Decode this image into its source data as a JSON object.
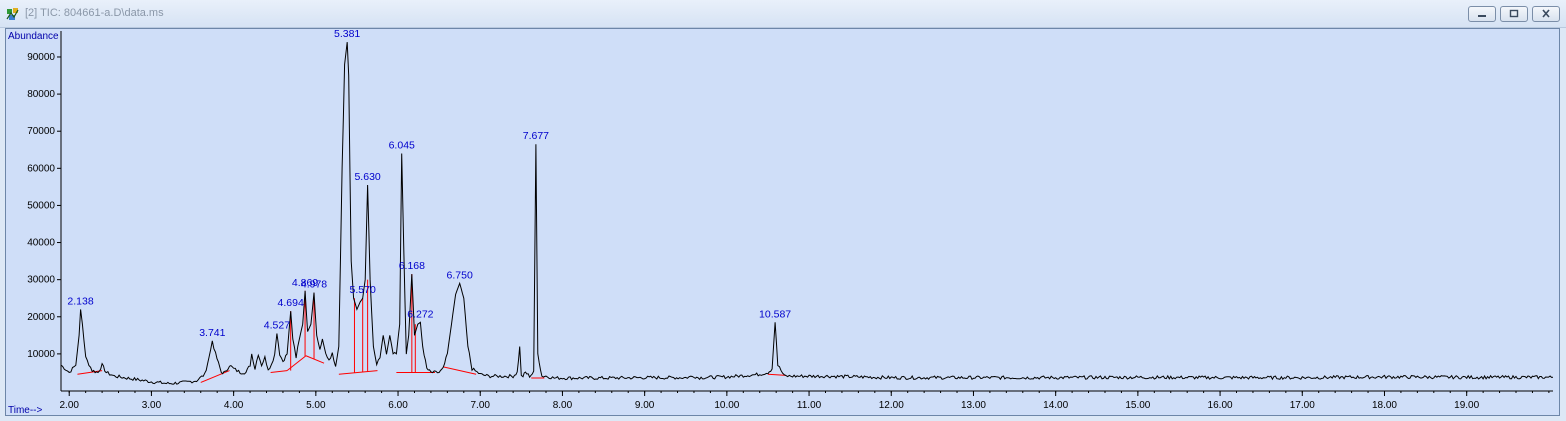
{
  "window": {
    "title": "[2] TIC: 804661-a.D\\data.ms",
    "icon": "app-icon",
    "controls": [
      "minimize-icon",
      "restore-icon",
      "close-icon"
    ]
  },
  "chart_data": {
    "type": "line",
    "title": "",
    "ylabel": "Abundance",
    "xlabel": "Time-->",
    "xlim": [
      1.9,
      20.05
    ],
    "ylim": [
      0,
      97000
    ],
    "x_ticks": [
      "2.00",
      "3.00",
      "4.00",
      "5.00",
      "6.00",
      "7.00",
      "8.00",
      "9.00",
      "10.00",
      "11.00",
      "12.00",
      "13.00",
      "14.00",
      "15.00",
      "16.00",
      "17.00",
      "18.00",
      "19.00"
    ],
    "y_ticks": [
      "10000",
      "20000",
      "30000",
      "40000",
      "50000",
      "60000",
      "70000",
      "80000",
      "90000"
    ],
    "series_color": "#000000",
    "baseline_color": "#ff0000",
    "label_color": "#0000cc",
    "series": [
      {
        "name": "TIC",
        "x": [
          1.9,
          2.0,
          2.08,
          2.12,
          2.138,
          2.16,
          2.2,
          2.28,
          2.35,
          2.4,
          2.45,
          2.55,
          2.7,
          2.85,
          3.0,
          3.2,
          3.4,
          3.55,
          3.65,
          3.7,
          3.741,
          3.78,
          3.85,
          3.9,
          3.95,
          4.0,
          4.08,
          4.15,
          4.2,
          4.22,
          4.26,
          4.3,
          4.34,
          4.38,
          4.42,
          4.46,
          4.5,
          4.527,
          4.56,
          4.6,
          4.65,
          4.694,
          4.72,
          4.76,
          4.8,
          4.84,
          4.869,
          4.9,
          4.94,
          4.978,
          5.01,
          5.05,
          5.08,
          5.12,
          5.16,
          5.2,
          5.24,
          5.28,
          5.32,
          5.35,
          5.381,
          5.4,
          5.43,
          5.46,
          5.5,
          5.54,
          5.57,
          5.6,
          5.63,
          5.66,
          5.7,
          5.74,
          5.78,
          5.82,
          5.86,
          5.9,
          5.94,
          5.98,
          6.02,
          6.045,
          6.07,
          6.1,
          6.13,
          6.168,
          6.2,
          6.24,
          6.272,
          6.3,
          6.35,
          6.4,
          6.5,
          6.55,
          6.6,
          6.65,
          6.7,
          6.75,
          6.8,
          6.85,
          6.9,
          7.0,
          7.1,
          7.2,
          7.3,
          7.4,
          7.45,
          7.48,
          7.5,
          7.52,
          7.55,
          7.6,
          7.65,
          7.677,
          7.7,
          7.75,
          7.8,
          7.9,
          8.0,
          8.5,
          9.0,
          9.5,
          9.6,
          9.65,
          10.0,
          10.4,
          10.5,
          10.55,
          10.587,
          10.62,
          10.7,
          10.8,
          11.2,
          12.0,
          13.0,
          14.0,
          15.0,
          16.0,
          17.0,
          18.0,
          19.0,
          19.8,
          20.05
        ],
        "y": [
          7000,
          5000,
          7000,
          15000,
          22000,
          18000,
          9000,
          5500,
          5000,
          7000,
          5000,
          4000,
          3500,
          3000,
          2500,
          2000,
          2300,
          2800,
          4500,
          9000,
          13500,
          10000,
          5000,
          5000,
          7000,
          6000,
          5000,
          5000,
          7000,
          10000,
          6000,
          10000,
          7000,
          9000,
          6000,
          7000,
          10000,
          15500,
          10000,
          8000,
          10000,
          21500,
          14000,
          9000,
          14000,
          18000,
          27000,
          16000,
          18000,
          26500,
          15000,
          11000,
          14000,
          10000,
          8500,
          10000,
          7000,
          12000,
          60000,
          88000,
          94000,
          85000,
          35000,
          25000,
          22000,
          24000,
          25000,
          30000,
          55500,
          30000,
          12000,
          7500,
          9000,
          15000,
          10000,
          15000,
          10000,
          10000,
          18000,
          64000,
          38000,
          10000,
          15000,
          31500,
          15000,
          18000,
          18500,
          12000,
          6000,
          5000,
          5000,
          6000,
          10000,
          18000,
          26000,
          29000,
          25000,
          12000,
          6000,
          4500,
          4000,
          4000,
          4000,
          4000,
          5000,
          12000,
          4000,
          4000,
          5000,
          4000,
          5000,
          66500,
          10000,
          4000,
          4000,
          3500,
          3500,
          3500,
          3600,
          3600,
          4000,
          3600,
          3800,
          4500,
          5000,
          6000,
          18500,
          7000,
          4000,
          4000,
          4000,
          3600,
          3600,
          3600,
          3700,
          3600,
          3600,
          3800,
          3700,
          3700,
          3700
        ]
      }
    ],
    "peaks": [
      {
        "label": "2.138",
        "x": 2.138,
        "y": 22000
      },
      {
        "label": "3.741",
        "x": 3.741,
        "y": 13500
      },
      {
        "label": "4.527",
        "x": 4.527,
        "y": 15500
      },
      {
        "label": "4.694",
        "x": 4.694,
        "y": 21500
      },
      {
        "label": "4.869",
        "x": 4.869,
        "y": 27000
      },
      {
        "label": "4.978",
        "x": 4.978,
        "y": 26500
      },
      {
        "label": "5.381",
        "x": 5.381,
        "y": 94000
      },
      {
        "label": "5.570",
        "x": 5.57,
        "y": 25000
      },
      {
        "label": "5.630",
        "x": 5.63,
        "y": 55500
      },
      {
        "label": "6.045",
        "x": 6.045,
        "y": 64000
      },
      {
        "label": "6.168",
        "x": 6.168,
        "y": 31500
      },
      {
        "label": "6.272",
        "x": 6.272,
        "y": 18500
      },
      {
        "label": "6.750",
        "x": 6.75,
        "y": 29000
      },
      {
        "label": "7.677",
        "x": 7.677,
        "y": 66500
      },
      {
        "label": "10.587",
        "x": 10.587,
        "y": 18500
      }
    ],
    "baselines": [
      {
        "x1": 2.1,
        "y1": 4500,
        "x2": 2.4,
        "y2": 5500
      },
      {
        "x1": 3.6,
        "y1": 2300,
        "x2": 3.95,
        "y2": 5500
      },
      {
        "x1": 4.45,
        "y1": 5000,
        "x2": 4.65,
        "y2": 5500
      },
      {
        "x1": 4.65,
        "y1": 5500,
        "x2": 4.88,
        "y2": 9500
      },
      {
        "x1": 4.88,
        "y1": 9500,
        "x2": 5.1,
        "y2": 7500
      },
      {
        "x1": 5.28,
        "y1": 4500,
        "x2": 5.75,
        "y2": 5500
      },
      {
        "x1": 5.98,
        "y1": 5000,
        "x2": 6.45,
        "y2": 5000
      },
      {
        "x1": 6.55,
        "y1": 6500,
        "x2": 6.95,
        "y2": 4500
      },
      {
        "x1": 7.62,
        "y1": 3500,
        "x2": 7.78,
        "y2": 3500
      },
      {
        "x1": 10.5,
        "y1": 4500,
        "x2": 10.72,
        "y2": 4200
      }
    ],
    "droplines": [
      {
        "x": 4.694,
        "y1": 5500,
        "y2": 21500
      },
      {
        "x": 4.869,
        "y1": 9400,
        "y2": 27000
      },
      {
        "x": 4.978,
        "y1": 8600,
        "y2": 26500
      },
      {
        "x": 5.47,
        "y1": 4900,
        "y2": 25000
      },
      {
        "x": 5.57,
        "y1": 5100,
        "y2": 25000
      },
      {
        "x": 5.63,
        "y1": 5200,
        "y2": 30000
      },
      {
        "x": 6.168,
        "y1": 5000,
        "y2": 31500
      },
      {
        "x": 6.21,
        "y1": 5000,
        "y2": 18000
      }
    ]
  }
}
